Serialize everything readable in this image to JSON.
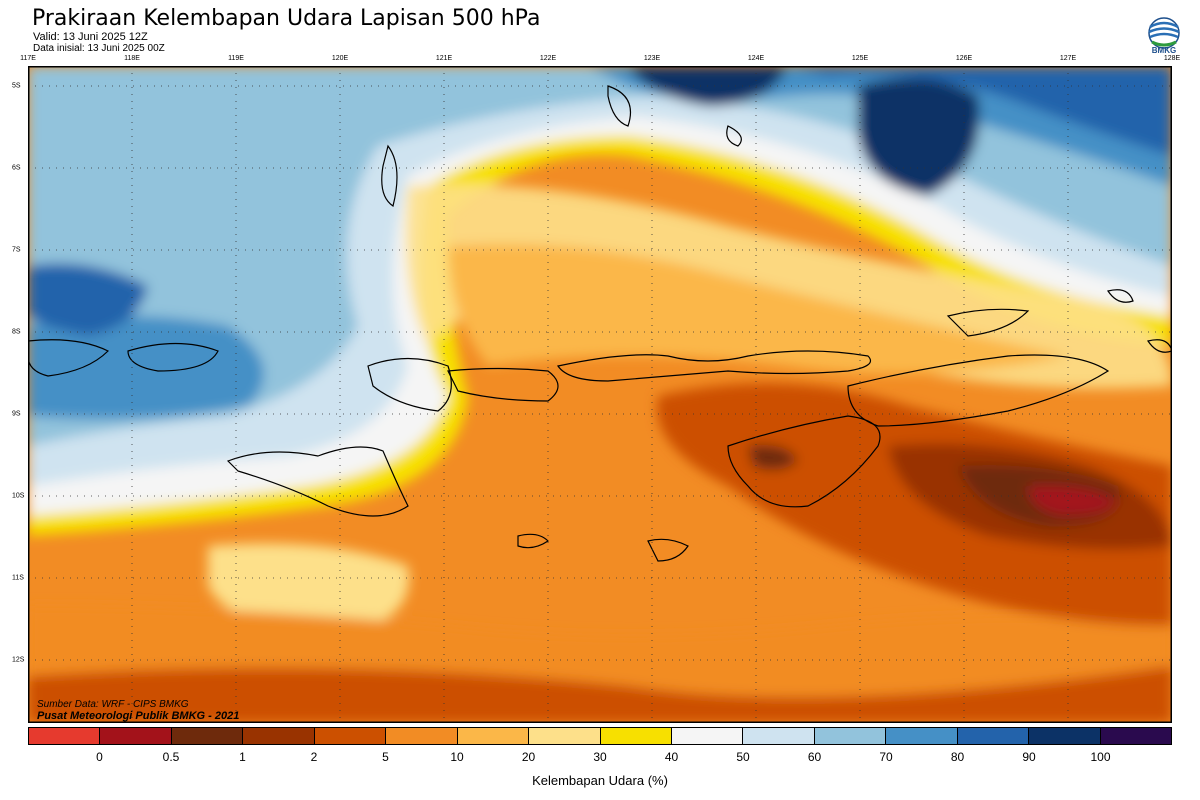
{
  "header": {
    "title": "Prakiraan Kelembapan Udara Lapisan 500 hPa",
    "valid": "Valid: 13 Juni 2025 12Z",
    "initial": "Data inisial: 13 Juni 2025 00Z"
  },
  "logo": {
    "text": "BMKG",
    "icon": "bmkg-logo-icon"
  },
  "axes": {
    "lon_labels": [
      "117E",
      "118E",
      "119E",
      "120E",
      "121E",
      "122E",
      "123E",
      "124E",
      "125E",
      "126E",
      "127E",
      "128E"
    ],
    "lat_labels": [
      "5S",
      "6S",
      "7S",
      "8S",
      "9S",
      "10S",
      "11S",
      "12S"
    ]
  },
  "footer": {
    "source": "Sumber Data: WRF - CIPS BMKG",
    "credit": "Pusat Meteorologi Publik BMKG - 2021"
  },
  "colorbar": {
    "colors": [
      "#e63a2e",
      "#a3121a",
      "#6e2a0c",
      "#993300",
      "#cc5000",
      "#f28c24",
      "#fbb748",
      "#fde08a",
      "#f7e000",
      "#f5f5f5",
      "#cfe3f0",
      "#92c3dc",
      "#4590c6",
      "#2363ab",
      "#0c3266",
      "#2a0a4e"
    ],
    "ticks": [
      "0",
      "0.5",
      "1",
      "2",
      "5",
      "10",
      "20",
      "30",
      "40",
      "50",
      "60",
      "70",
      "80",
      "90",
      "100"
    ],
    "label": "Kelembapan Udara (%)"
  }
}
